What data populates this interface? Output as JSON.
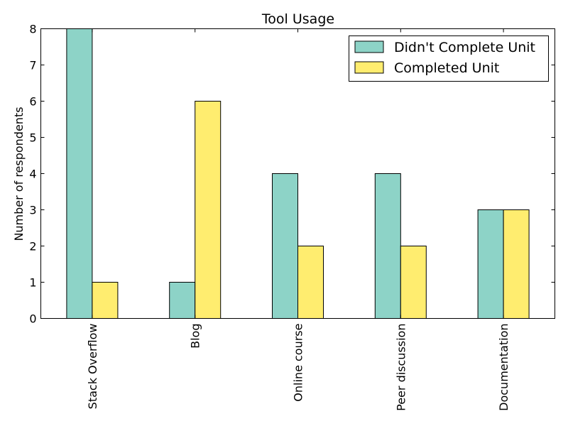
{
  "chart_data": {
    "type": "bar",
    "title": "Tool Usage",
    "xlabel": "",
    "ylabel": "Number of respondents",
    "categories": [
      "Stack Overflow",
      "Blog",
      "Online course",
      "Peer discussion",
      "Documentation"
    ],
    "series": [
      {
        "name": "Didn't Complete Unit",
        "values": [
          8,
          1,
          4,
          4,
          3
        ],
        "color": "#8dd3c7"
      },
      {
        "name": "Completed Unit",
        "values": [
          1,
          6,
          2,
          2,
          3
        ],
        "color": "#ffed6f"
      }
    ],
    "ylim": [
      0,
      8
    ],
    "yticks": [
      "0",
      "1",
      "2",
      "3",
      "4",
      "5",
      "6",
      "7",
      "8"
    ],
    "grid": false,
    "legend_position": "top-right",
    "x_tick_rotation": "vertical"
  }
}
